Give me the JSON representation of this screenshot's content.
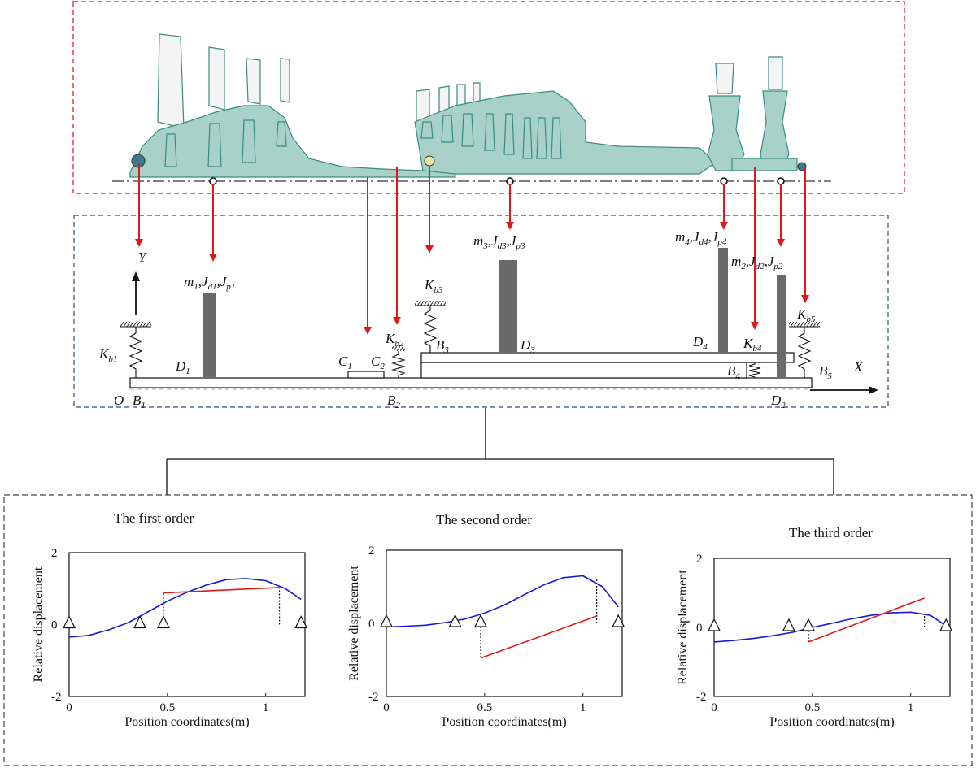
{
  "model": {
    "labels": {
      "O": "O",
      "B1": "B",
      "B1_sub": "1",
      "B2": "B",
      "B2_sub": "2",
      "B3": "B",
      "B3_sub": "3",
      "B4": "B",
      "B4_sub": "4",
      "B5": "B",
      "B5_sub": "5",
      "C1": "C",
      "C1_sub": "1",
      "C2": "C",
      "C2_sub": "2",
      "D1": "D",
      "D1_sub": "1",
      "D2": "D",
      "D2_sub": "2",
      "D3": "D",
      "D3_sub": "3",
      "D4": "D",
      "D4_sub": "4",
      "Kb1": "K",
      "Kb1_sub": "b1",
      "Kb2": "K",
      "Kb2_sub": "b2",
      "Kb3": "K",
      "Kb3_sub": "b3",
      "Kb4": "K",
      "Kb4_sub": "b4",
      "Kb5": "K",
      "Kb5_sub": "b5",
      "X": "X",
      "Y": "Y",
      "disk1": [
        "m",
        "1",
        ",J",
        "d1",
        ",J",
        "p1"
      ],
      "disk2": [
        "m",
        "2",
        ",J",
        "d2",
        ",J",
        "p2"
      ],
      "disk3": [
        "m",
        "3",
        ",J",
        "d3",
        ",J",
        "p3"
      ],
      "disk4": [
        "m",
        "4",
        ",J",
        "d4",
        ",J",
        "p4"
      ]
    }
  },
  "colors": {
    "red_frame": "#e03030",
    "blue_frame": "#2a4a8a",
    "arrow": "#e01818",
    "mode_line": "#1818d8",
    "shaft_line": "#e01818",
    "drawing": "#3a8a80",
    "drawing_fill": "#a8d2c8"
  },
  "chart_data": [
    {
      "type": "line",
      "title": "The first order",
      "xlabel": "Position coordinates(m)",
      "ylabel": "Relative displacement",
      "xlim": [
        0,
        1.2
      ],
      "ylim": [
        -2,
        2
      ],
      "xticks": [
        "0",
        "0.5",
        "1"
      ],
      "yticks": [
        "2",
        "0",
        "-2"
      ],
      "series": [
        {
          "x": [
            0,
            0.1,
            0.2,
            0.3,
            0.4,
            0.5,
            0.6,
            0.7,
            0.8,
            0.9,
            1.0,
            1.1,
            1.18
          ],
          "values": [
            -0.35,
            -0.3,
            -0.15,
            0.05,
            0.35,
            0.65,
            0.9,
            1.1,
            1.25,
            1.28,
            1.22,
            1.0,
            0.7
          ]
        },
        {
          "x": [
            0.48,
            1.07
          ],
          "values": [
            0.88,
            1.03
          ]
        }
      ],
      "supports": [
        0,
        0.36,
        0.48,
        1.18
      ],
      "jumps": [
        [
          0.48,
          0.88
        ],
        [
          1.07,
          1.03
        ]
      ]
    },
    {
      "type": "line",
      "title": "The second order",
      "xlabel": "Position coordinates(m)",
      "ylabel": "Relative displacement",
      "xlim": [
        0,
        1.2
      ],
      "ylim": [
        -2,
        2
      ],
      "xticks": [
        "0",
        "0.5",
        "1"
      ],
      "yticks": [
        "2",
        "0",
        "-2"
      ],
      "series": [
        {
          "x": [
            0,
            0.1,
            0.2,
            0.3,
            0.4,
            0.5,
            0.6,
            0.7,
            0.8,
            0.9,
            1.0,
            1.1,
            1.18
          ],
          "values": [
            -0.1,
            -0.08,
            -0.05,
            0.02,
            0.12,
            0.28,
            0.5,
            0.78,
            1.05,
            1.25,
            1.3,
            1.0,
            0.45
          ]
        },
        {
          "x": [
            0.48,
            1.07
          ],
          "values": [
            -0.95,
            0.2
          ]
        }
      ],
      "supports": [
        0,
        0.35,
        0.48,
        1.18
      ],
      "jumps": [
        [
          0.48,
          -0.95
        ],
        [
          1.07,
          1.25
        ]
      ]
    },
    {
      "type": "line",
      "title": "The third order",
      "xlabel": "Position coordinates(m)",
      "ylabel": "Relative displacement",
      "xlim": [
        0,
        1.2
      ],
      "ylim": [
        -2,
        2
      ],
      "xticks": [
        "0",
        "0.5",
        "1"
      ],
      "yticks": [
        "2",
        "0",
        "-2"
      ],
      "series": [
        {
          "x": [
            0,
            0.1,
            0.2,
            0.3,
            0.4,
            0.5,
            0.6,
            0.7,
            0.8,
            0.9,
            1.0,
            1.1,
            1.18
          ],
          "values": [
            -0.42,
            -0.38,
            -0.32,
            -0.24,
            -0.14,
            0.0,
            0.12,
            0.25,
            0.35,
            0.42,
            0.44,
            0.35,
            0.05
          ]
        },
        {
          "x": [
            0.48,
            1.07
          ],
          "values": [
            -0.42,
            0.85
          ]
        }
      ],
      "supports": [
        0,
        0.38,
        0.48,
        1.18
      ],
      "jumps": [
        [
          0.48,
          -0.42
        ],
        [
          1.07,
          0.4
        ]
      ]
    }
  ]
}
